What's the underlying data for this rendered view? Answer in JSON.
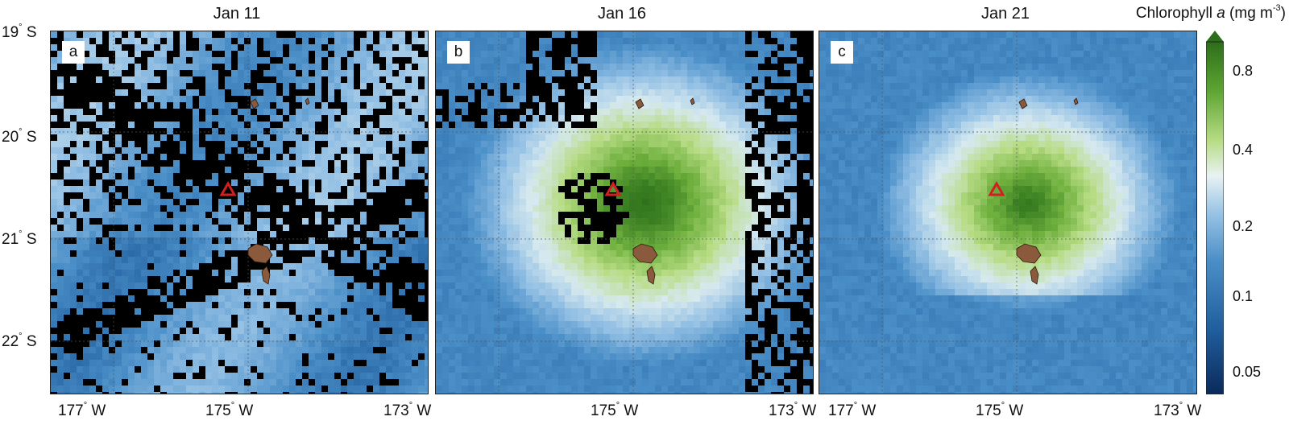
{
  "panels": [
    {
      "id": "a",
      "date": "Jan 11"
    },
    {
      "id": "b",
      "date": "Jan 16"
    },
    {
      "id": "c",
      "date": "Jan 21"
    }
  ],
  "lat_ticks": [
    "19",
    "20",
    "21",
    "22"
  ],
  "lat_hemisphere": "S",
  "lon_ticks": [
    "177",
    "175",
    "173"
  ],
  "lon_hemisphere": "W",
  "degree_symbol": "°",
  "colorbar": {
    "title_prefix": "Chlorophyll ",
    "title_variable": "a",
    "title_units": " (mg m",
    "title_exponent": "-3",
    "title_suffix": ")",
    "ticks": [
      "0.8",
      "0.4",
      "0.2",
      "0.1",
      "0.05"
    ],
    "colors": [
      "#0a2a5a",
      "#1f5d9c",
      "#4b8fc8",
      "#9cc6e6",
      "#e8f2f2",
      "#b7dc84",
      "#5ea534",
      "#2c6e1a"
    ]
  },
  "map_colors": {
    "cloud": "#000000",
    "island": "#8b5a3c",
    "volcano_marker": "#d21f1f"
  }
}
